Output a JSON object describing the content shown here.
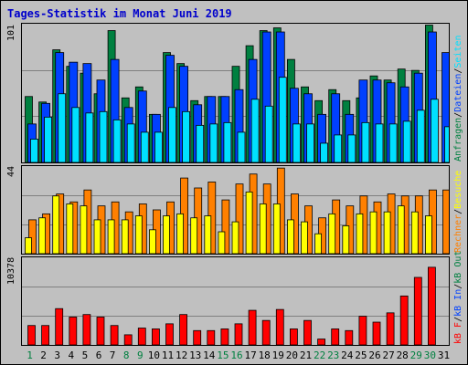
{
  "title": "Tages-Statistik im Monat Juni 2019",
  "colors": {
    "hits": "#008040",
    "files": "#0040FF",
    "pages": "#00E0FF",
    "visits": "#FFFF00",
    "sites": "#FF8000",
    "kbytes": "#FF0000",
    "weekday_label": "#000000",
    "weekend_label": "#008040"
  },
  "chart_data": [
    {
      "type": "bar",
      "ymax_label": "101",
      "ylim": [
        0,
        101
      ],
      "categories": [
        "1",
        "2",
        "3",
        "4",
        "5",
        "6",
        "7",
        "8",
        "9",
        "10",
        "11",
        "12",
        "13",
        "14",
        "15",
        "16",
        "17",
        "18",
        "19",
        "20",
        "21",
        "22",
        "23",
        "24",
        "25",
        "26",
        "27",
        "28",
        "29",
        "30",
        "31"
      ],
      "series": [
        {
          "name": "Anfragen",
          "values": [
            48,
            44,
            82,
            70,
            65,
            50,
            96,
            47,
            55,
            35,
            80,
            72,
            45,
            48,
            48,
            70,
            85,
            96,
            98,
            75,
            55,
            45,
            53,
            45,
            47,
            63,
            60,
            68,
            67,
            100,
            0
          ]
        },
        {
          "name": "Dateien",
          "values": [
            28,
            43,
            80,
            73,
            72,
            60,
            75,
            40,
            52,
            35,
            78,
            70,
            42,
            48,
            48,
            53,
            75,
            95,
            95,
            54,
            50,
            35,
            50,
            35,
            60,
            60,
            58,
            55,
            65,
            95,
            80
          ]
        },
        {
          "name": "Seiten",
          "values": [
            17,
            33,
            50,
            40,
            36,
            37,
            31,
            28,
            22,
            22,
            40,
            37,
            27,
            28,
            29,
            22,
            46,
            41,
            62,
            28,
            28,
            14,
            20,
            20,
            29,
            28,
            28,
            30,
            38,
            46,
            26
          ]
        }
      ]
    },
    {
      "type": "bar",
      "ymax_label": "44",
      "ylim": [
        0,
        44
      ],
      "series": [
        {
          "name": "Besuche",
          "values": [
            8,
            18,
            29,
            25,
            24,
            17,
            17,
            17,
            19,
            12,
            19,
            20,
            18,
            19,
            11,
            16,
            31,
            25,
            25,
            17,
            16,
            10,
            20,
            14,
            20,
            21,
            21,
            24,
            21,
            19,
            0
          ]
        },
        {
          "name": "Rechner",
          "values": [
            17,
            20,
            30,
            26,
            32,
            24,
            26,
            21,
            25,
            22,
            26,
            38,
            33,
            36,
            27,
            35,
            40,
            35,
            43,
            30,
            24,
            18,
            27,
            24,
            29,
            26,
            30,
            29,
            29,
            32,
            32
          ]
        }
      ]
    },
    {
      "type": "bar",
      "ymax_label": "10378",
      "ylim": [
        0,
        10378
      ],
      "series": [
        {
          "name": "kB F",
          "values": [
            2300,
            2300,
            4300,
            3300,
            3600,
            3300,
            2300,
            1200,
            2000,
            1900,
            2500,
            3600,
            1700,
            1700,
            1900,
            2500,
            4100,
            2900,
            4200,
            1900,
            2900,
            700,
            1900,
            1700,
            3400,
            2700,
            3800,
            5800,
            8000,
            9200,
            0
          ]
        }
      ]
    }
  ],
  "legend_panel1": [
    "Anfragen",
    "/",
    "Dateien",
    "/",
    "Seiten"
  ],
  "legend_panel2": [
    "Rechner",
    "/",
    "Besuche"
  ],
  "legend_panel3": [
    "kB F",
    "/",
    "kB In",
    "/",
    "kB Out"
  ],
  "weekend_days": [
    1,
    8,
    9,
    15,
    16,
    22,
    23,
    29,
    30
  ]
}
